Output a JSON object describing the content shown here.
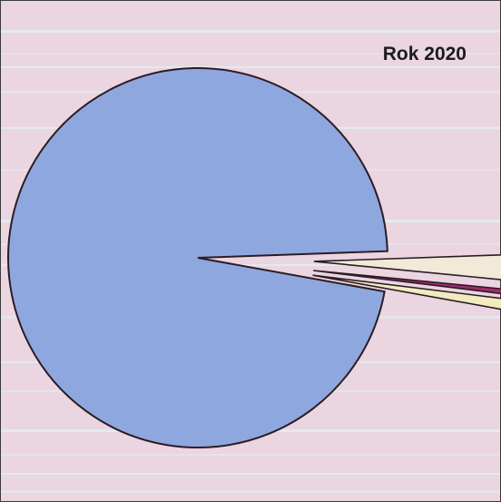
{
  "chart_data": {
    "type": "pie",
    "title": "Rok 2020",
    "slices": [
      {
        "value": 96.6,
        "color": "#8fa7df"
      },
      {
        "value": 0.9,
        "color": "#f1ecc0"
      },
      {
        "value": 0.4,
        "color": "#a12a6f"
      },
      {
        "value": 2.1,
        "color": "#f2ead9"
      }
    ],
    "start_angle_deg": 2,
    "exploded_slices": [
      1,
      2,
      3
    ],
    "background": "#ead5e0",
    "stripe_color": "#dff2f4",
    "outline_color": "#2b1c24"
  }
}
